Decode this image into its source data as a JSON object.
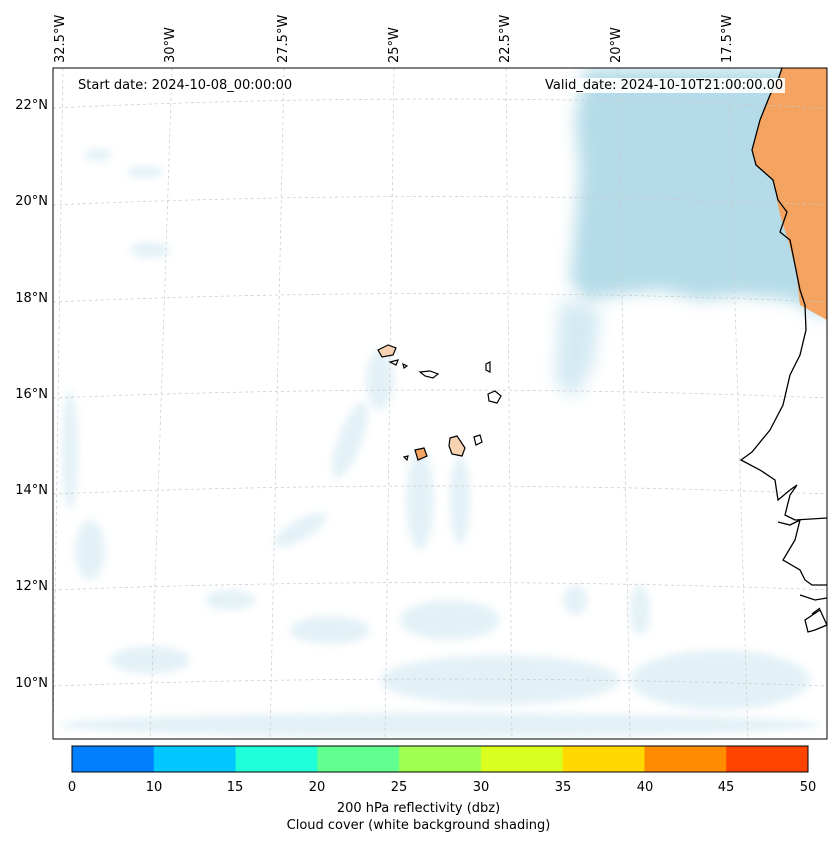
{
  "map": {
    "projection": "lambert-like",
    "lon_labels": [
      "32.5°W",
      "30°W",
      "27.5°W",
      "25°W",
      "22.5°W",
      "20°W",
      "17.5°W"
    ],
    "lat_labels": [
      "22°N",
      "20°N",
      "18°N",
      "16°N",
      "14°N",
      "12°N",
      "10°N"
    ],
    "start_date_text": "Start date: 2024-10-08_00:00:00",
    "valid_date_text": "Valid_date: 2024-10-10T21:00:00.00",
    "colors": {
      "cloud": "#add8e6",
      "land_hot": "#f4a460",
      "land_cape_verde": "#f7d3b3",
      "coastline": "#000000",
      "grid": "#c8c8c8"
    },
    "features": [
      "cape-verde-islands",
      "west-africa-coastline",
      "cloud-cover-shading"
    ]
  },
  "colorbar": {
    "ticks": [
      "0",
      "10",
      "15",
      "20",
      "25",
      "30",
      "35",
      "40",
      "45",
      "50"
    ],
    "colors": [
      "#0080ff",
      "#00c8ff",
      "#20ffd8",
      "#60ff90",
      "#a0ff50",
      "#d8ff20",
      "#ffd800",
      "#ff8c00",
      "#ff4400"
    ],
    "label_line1": "200 hPa reflectivity (dbz)",
    "label_line2": "Cloud cover (white background shading)"
  }
}
